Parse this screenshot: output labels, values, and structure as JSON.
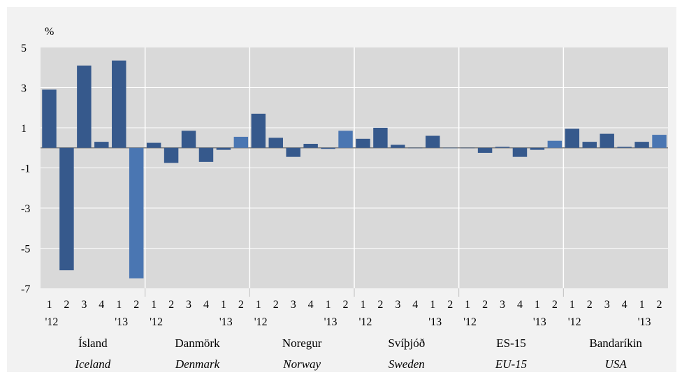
{
  "chart_data": {
    "type": "bar",
    "ylabel": "%",
    "ylim": [
      -7,
      5
    ],
    "yticks": [
      5,
      3,
      1,
      -1,
      -3,
      -5,
      -7
    ],
    "grid": true,
    "colors": {
      "bar": "#36598C",
      "bar_last": "#4A76B2",
      "plot_bg": "#D9D9D9",
      "outer_bg": "#F2F2F2",
      "grid": "#FFFFFF",
      "zero_line": "#7F7F7F"
    },
    "quarter_labels": [
      "1",
      "2",
      "3",
      "4",
      "1",
      "2"
    ],
    "year_labels": [
      "'12",
      "'13"
    ],
    "groups": [
      {
        "name": "Ísland",
        "name_en": "Iceland",
        "values": [
          2.9,
          -6.1,
          4.1,
          0.3,
          4.35,
          -6.5
        ]
      },
      {
        "name": "Danmörk",
        "name_en": "Denmark",
        "values": [
          0.25,
          -0.75,
          0.85,
          -0.7,
          -0.1,
          0.55
        ]
      },
      {
        "name": "Noregur",
        "name_en": "Norway",
        "values": [
          1.7,
          0.5,
          -0.45,
          0.2,
          -0.05,
          0.85
        ]
      },
      {
        "name": "Svíþjóð",
        "name_en": "Sweden",
        "values": [
          0.45,
          1.0,
          0.15,
          0.0,
          0.6,
          0.0
        ]
      },
      {
        "name": "ES-15",
        "name_en": "EU-15",
        "values": [
          0.0,
          -0.25,
          0.05,
          -0.45,
          -0.1,
          0.35
        ]
      },
      {
        "name": "Bandaríkin",
        "name_en": "USA",
        "values": [
          0.95,
          0.3,
          0.7,
          0.05,
          0.3,
          0.65
        ]
      }
    ]
  }
}
